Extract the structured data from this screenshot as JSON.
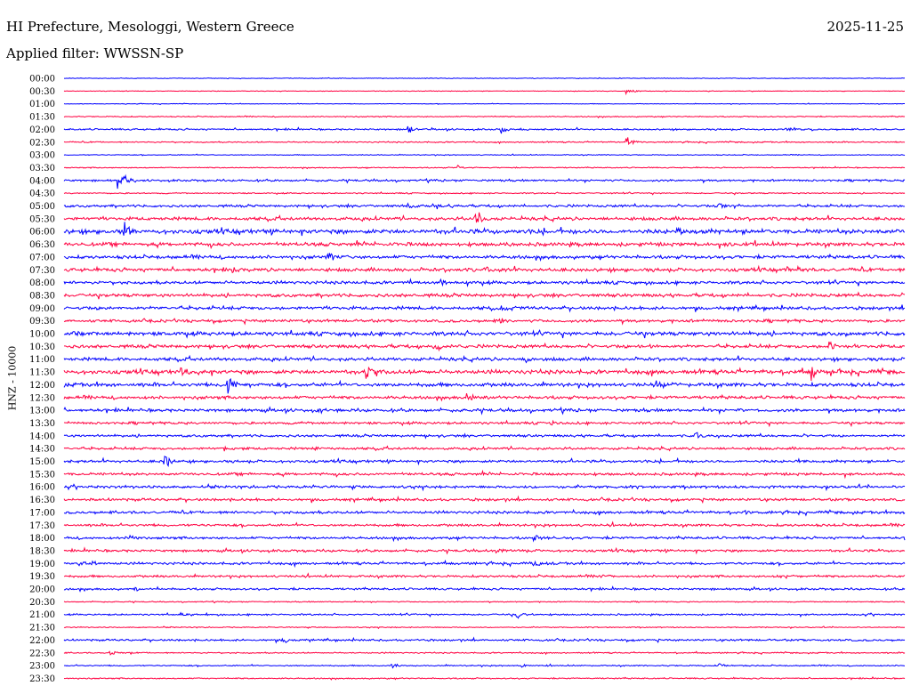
{
  "header": {
    "station": "HI Prefecture, Mesologgi, Western Greece",
    "date": "2025-11-25",
    "filter": "Applied filter: WWSSN-SP"
  },
  "chart_data": {
    "type": "line",
    "ylabel": "HNZ - 10000",
    "row_labels": [
      "00:00",
      "00:30",
      "01:00",
      "01:30",
      "02:00",
      "02:30",
      "03:00",
      "03:30",
      "04:00",
      "04:30",
      "05:00",
      "05:30",
      "06:00",
      "06:30",
      "07:00",
      "07:30",
      "08:00",
      "08:30",
      "09:00",
      "09:30",
      "10:00",
      "10:30",
      "11:00",
      "11:30",
      "12:00",
      "12:30",
      "13:00",
      "13:30",
      "14:00",
      "14:30",
      "15:00",
      "15:30",
      "16:00",
      "16:30",
      "17:00",
      "17:30",
      "18:00",
      "18:30",
      "19:00",
      "19:30",
      "20:00",
      "20:30",
      "21:00",
      "21:30",
      "22:00",
      "22:30",
      "23:00",
      "23:30"
    ],
    "series_colors": [
      "#0000ff",
      "#ff0040"
    ],
    "noise_level": [
      0.3,
      0.3,
      0.3,
      0.5,
      0.8,
      0.6,
      0.4,
      0.5,
      1.0,
      0.6,
      1.2,
      1.6,
      2.2,
      1.8,
      1.6,
      1.7,
      1.5,
      1.6,
      1.6,
      1.4,
      1.9,
      1.6,
      1.6,
      2.0,
      1.8,
      1.5,
      1.5,
      1.2,
      1.2,
      1.2,
      1.3,
      1.3,
      1.3,
      1.3,
      1.3,
      1.2,
      1.2,
      1.2,
      1.2,
      1.1,
      1.0,
      0.5,
      0.8,
      0.5,
      1.0,
      0.6,
      0.6,
      0.6
    ],
    "events": [
      {
        "row": 1,
        "x": 0.67,
        "amp": 4
      },
      {
        "row": 4,
        "x": 0.41,
        "amp": 5
      },
      {
        "row": 4,
        "x": 0.52,
        "amp": 8
      },
      {
        "row": 4,
        "x": 0.86,
        "amp": 3
      },
      {
        "row": 5,
        "x": 0.67,
        "amp": 7
      },
      {
        "row": 7,
        "x": 0.47,
        "amp": 3
      },
      {
        "row": 8,
        "x": 0.065,
        "amp": 16
      },
      {
        "row": 10,
        "x": 0.41,
        "amp": 6
      },
      {
        "row": 10,
        "x": 0.445,
        "amp": 5
      },
      {
        "row": 10,
        "x": 0.78,
        "amp": 5
      },
      {
        "row": 11,
        "x": 0.49,
        "amp": 12
      },
      {
        "row": 12,
        "x": 0.072,
        "amp": 12
      },
      {
        "row": 12,
        "x": 0.73,
        "amp": 6
      },
      {
        "row": 13,
        "x": 0.79,
        "amp": 4
      },
      {
        "row": 14,
        "x": 0.315,
        "amp": 6
      },
      {
        "row": 15,
        "x": 0.2,
        "amp": 4
      },
      {
        "row": 15,
        "x": 0.5,
        "amp": 4
      },
      {
        "row": 15,
        "x": 0.86,
        "amp": 4
      },
      {
        "row": 16,
        "x": 0.41,
        "amp": 4
      },
      {
        "row": 16,
        "x": 0.45,
        "amp": 4
      },
      {
        "row": 18,
        "x": 0.05,
        "amp": 4
      },
      {
        "row": 18,
        "x": 0.52,
        "amp": 5
      },
      {
        "row": 19,
        "x": 0.52,
        "amp": 4
      },
      {
        "row": 20,
        "x": 0.012,
        "amp": 6
      },
      {
        "row": 20,
        "x": 0.93,
        "amp": 4
      },
      {
        "row": 21,
        "x": 0.44,
        "amp": 5
      },
      {
        "row": 21,
        "x": 0.91,
        "amp": 9
      },
      {
        "row": 22,
        "x": 0.55,
        "amp": 5
      },
      {
        "row": 23,
        "x": 0.14,
        "amp": 8
      },
      {
        "row": 23,
        "x": 0.36,
        "amp": 11
      },
      {
        "row": 23,
        "x": 0.89,
        "amp": 12
      },
      {
        "row": 24,
        "x": 0.195,
        "amp": 12
      },
      {
        "row": 24,
        "x": 0.71,
        "amp": 5
      },
      {
        "row": 25,
        "x": 0.48,
        "amp": 7
      },
      {
        "row": 26,
        "x": 0.3,
        "amp": 4
      },
      {
        "row": 26,
        "x": 0.8,
        "amp": 4
      },
      {
        "row": 27,
        "x": 0.58,
        "amp": 3
      },
      {
        "row": 28,
        "x": 0.75,
        "amp": 7
      },
      {
        "row": 28,
        "x": 0.93,
        "amp": 3
      },
      {
        "row": 29,
        "x": 0.19,
        "amp": 3
      },
      {
        "row": 29,
        "x": 0.3,
        "amp": 3
      },
      {
        "row": 30,
        "x": 0.12,
        "amp": 9
      },
      {
        "row": 32,
        "x": 0.84,
        "amp": 3
      },
      {
        "row": 34,
        "x": 0.81,
        "amp": 4
      },
      {
        "row": 36,
        "x": 0.08,
        "amp": 4
      },
      {
        "row": 36,
        "x": 0.56,
        "amp": 5
      },
      {
        "row": 37,
        "x": 0.52,
        "amp": 4
      },
      {
        "row": 38,
        "x": 0.02,
        "amp": 4
      },
      {
        "row": 38,
        "x": 0.56,
        "amp": 5
      },
      {
        "row": 39,
        "x": 0.64,
        "amp": 4
      },
      {
        "row": 39,
        "x": 0.85,
        "amp": 4
      },
      {
        "row": 40,
        "x": 0.085,
        "amp": 3
      },
      {
        "row": 42,
        "x": 0.54,
        "amp": 5
      },
      {
        "row": 42,
        "x": 0.14,
        "amp": 3
      },
      {
        "row": 44,
        "x": 0.26,
        "amp": 5
      },
      {
        "row": 45,
        "x": 0.055,
        "amp": 4
      },
      {
        "row": 46,
        "x": 0.39,
        "amp": 3
      },
      {
        "row": 46,
        "x": 0.545,
        "amp": 3
      },
      {
        "row": 46,
        "x": 0.78,
        "amp": 3
      }
    ]
  }
}
